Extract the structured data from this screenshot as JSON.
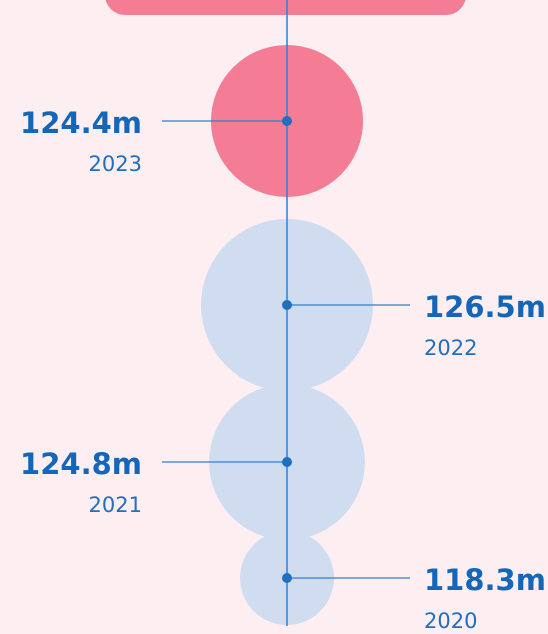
{
  "chart_data": {
    "type": "bubble",
    "categories": [
      "2023",
      "2022",
      "2021",
      "2020"
    ],
    "values": [
      124.4,
      126.5,
      124.8,
      118.3
    ],
    "value_labels": [
      "124.4m",
      "126.5m",
      "124.8m",
      "118.3m"
    ],
    "colors": [
      "#f47c95",
      "#d0dcf0",
      "#d0dcf0",
      "#d0dcf0"
    ],
    "line_color": "#2f7fd0"
  }
}
